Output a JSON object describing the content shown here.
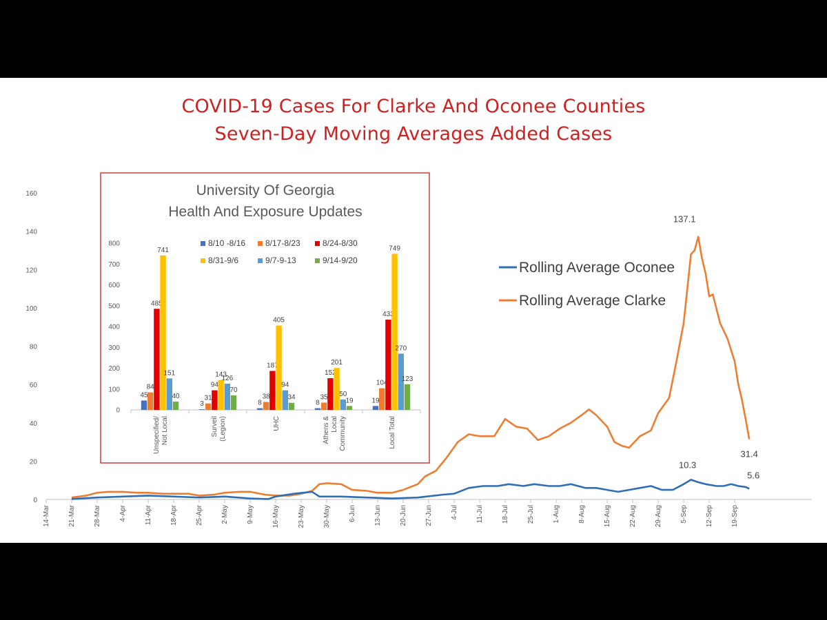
{
  "slide": {
    "title_line1": "COVID-19 Cases For Clarke And Oconee Counties",
    "title_line2": "Seven-Day Moving Averages Added Cases"
  },
  "chart_data": [
    {
      "type": "line",
      "title": "",
      "xlabel": "",
      "ylabel": "",
      "ylim": [
        0,
        160
      ],
      "yticks": [
        0,
        20,
        40,
        60,
        80,
        100,
        120,
        140,
        160
      ],
      "xtick_labels": [
        "14-Mar",
        "21-Mar",
        "28-Mar",
        "4-Apr",
        "11-Apr",
        "18-Apr",
        "25-Apr",
        "2-May",
        "9-May",
        "16-May",
        "23-May",
        "30-May",
        "6-Jun",
        "13-Jun",
        "20-Jun",
        "27-Jun",
        "4-Jul",
        "11-Jul",
        "18-Jul",
        "25-Jul",
        "1-Aug",
        "8-Aug",
        "15-Aug",
        "22-Aug",
        "29-Aug",
        "5-Sep",
        "12-Sep",
        "19-Sep"
      ],
      "x_start": "14-Mar",
      "legend": {
        "position": "right"
      },
      "grid": false,
      "annotations": [
        {
          "series": "Rolling Average Clarke",
          "day": "9-Sep",
          "label": "137.1"
        },
        {
          "series": "Rolling Average Clarke",
          "day": "23-Sep",
          "label": "31.4"
        },
        {
          "series": "Rolling Average Oconee",
          "day": "7-Sep",
          "label": "10.3"
        },
        {
          "series": "Rolling Average Oconee",
          "day": "23-Sep",
          "label": "5.6"
        }
      ],
      "series": [
        {
          "name": "Rolling Average Oconee",
          "color": "#2e6eb5",
          "points": [
            [
              "21-Mar",
              0.2
            ],
            [
              "28-Mar",
              1
            ],
            [
              "4-Apr",
              1.5
            ],
            [
              "11-Apr",
              2
            ],
            [
              "18-Apr",
              1.5
            ],
            [
              "25-Apr",
              1
            ],
            [
              "2-May",
              1.5
            ],
            [
              "9-May",
              0.5
            ],
            [
              "14-May",
              0.2
            ],
            [
              "16-May",
              1.5
            ],
            [
              "21-May",
              3
            ],
            [
              "26-May",
              4
            ],
            [
              "28-May",
              1.5
            ],
            [
              "3-Jun",
              1.5
            ],
            [
              "10-Jun",
              1
            ],
            [
              "17-Jun",
              0.5
            ],
            [
              "24-Jun",
              1
            ],
            [
              "1-Jul",
              2.5
            ],
            [
              "4-Jul",
              3
            ],
            [
              "8-Jul",
              6
            ],
            [
              "12-Jul",
              7
            ],
            [
              "16-Jul",
              7
            ],
            [
              "19-Jul",
              8
            ],
            [
              "23-Jul",
              7
            ],
            [
              "26-Jul",
              8
            ],
            [
              "30-Jul",
              7
            ],
            [
              "2-Aug",
              7
            ],
            [
              "5-Aug",
              8
            ],
            [
              "9-Aug",
              6
            ],
            [
              "12-Aug",
              6
            ],
            [
              "15-Aug",
              5
            ],
            [
              "18-Aug",
              4
            ],
            [
              "21-Aug",
              5
            ],
            [
              "24-Aug",
              6
            ],
            [
              "27-Aug",
              7
            ],
            [
              "30-Aug",
              5
            ],
            [
              "2-Sep",
              5
            ],
            [
              "5-Sep",
              8
            ],
            [
              "7-Sep",
              10.3
            ],
            [
              "9-Sep",
              9
            ],
            [
              "11-Sep",
              8
            ],
            [
              "14-Sep",
              7
            ],
            [
              "16-Sep",
              7
            ],
            [
              "18-Sep",
              8
            ],
            [
              "20-Sep",
              7
            ],
            [
              "22-Sep",
              6.5
            ],
            [
              "23-Sep",
              5.6
            ]
          ]
        },
        {
          "name": "Rolling Average Clarke",
          "color": "#ee7d31",
          "points": [
            [
              "21-Mar",
              1
            ],
            [
              "25-Mar",
              2
            ],
            [
              "28-Mar",
              3.5
            ],
            [
              "31-Mar",
              4
            ],
            [
              "4-Apr",
              4
            ],
            [
              "8-Apr",
              3.5
            ],
            [
              "11-Apr",
              3.5
            ],
            [
              "15-Apr",
              3
            ],
            [
              "18-Apr",
              3
            ],
            [
              "22-Apr",
              3
            ],
            [
              "25-Apr",
              2
            ],
            [
              "29-Apr",
              2.5
            ],
            [
              "2-May",
              3.5
            ],
            [
              "6-May",
              4
            ],
            [
              "9-May",
              4
            ],
            [
              "13-May",
              2.5
            ],
            [
              "16-May",
              2
            ],
            [
              "20-May",
              2
            ],
            [
              "23-May",
              3
            ],
            [
              "26-May",
              4.5
            ],
            [
              "28-May",
              8
            ],
            [
              "30-May",
              8.5
            ],
            [
              "3-Jun",
              8
            ],
            [
              "6-Jun",
              5
            ],
            [
              "10-Jun",
              4.5
            ],
            [
              "13-Jun",
              3.5
            ],
            [
              "17-Jun",
              3.5
            ],
            [
              "20-Jun",
              5
            ],
            [
              "24-Jun",
              8
            ],
            [
              "26-Jun",
              12
            ],
            [
              "29-Jun",
              15
            ],
            [
              "2-Jul",
              22
            ],
            [
              "5-Jul",
              30
            ],
            [
              "8-Jul",
              34
            ],
            [
              "11-Jul",
              33
            ],
            [
              "15-Jul",
              33
            ],
            [
              "18-Jul",
              42
            ],
            [
              "21-Jul",
              38
            ],
            [
              "24-Jul",
              37
            ],
            [
              "27-Jul",
              31
            ],
            [
              "30-Jul",
              33
            ],
            [
              "2-Aug",
              37
            ],
            [
              "5-Aug",
              40
            ],
            [
              "8-Aug",
              44
            ],
            [
              "10-Aug",
              47
            ],
            [
              "12-Aug",
              44
            ],
            [
              "15-Aug",
              38
            ],
            [
              "17-Aug",
              30
            ],
            [
              "19-Aug",
              28
            ],
            [
              "21-Aug",
              27
            ],
            [
              "24-Aug",
              33
            ],
            [
              "27-Aug",
              36
            ],
            [
              "29-Aug",
              45
            ],
            [
              "1-Sep",
              53
            ],
            [
              "3-Sep",
              72
            ],
            [
              "5-Sep",
              92
            ],
            [
              "7-Sep",
              128
            ],
            [
              "8-Sep",
              130
            ],
            [
              "9-Sep",
              137.1
            ],
            [
              "10-Sep",
              126
            ],
            [
              "11-Sep",
              118
            ],
            [
              "12-Sep",
              106
            ],
            [
              "13-Sep",
              107
            ],
            [
              "15-Sep",
              92
            ],
            [
              "17-Sep",
              84
            ],
            [
              "19-Sep",
              72
            ],
            [
              "20-Sep",
              60
            ],
            [
              "21-Sep",
              52
            ],
            [
              "22-Sep",
              42
            ],
            [
              "23-Sep",
              31.4
            ]
          ]
        }
      ]
    },
    {
      "type": "bar",
      "title": "University Of Georgia\nHealth And Exposure Updates",
      "title_lines": [
        "University Of Georgia",
        "Health And Exposure Updates"
      ],
      "xlabel": "",
      "ylabel": "",
      "ylim": [
        0,
        800
      ],
      "yticks": [
        0,
        100,
        200,
        300,
        400,
        500,
        600,
        700,
        800
      ],
      "grid": false,
      "legend": {
        "position": "top"
      },
      "categories": [
        [
          "Unspecified/",
          "Not Local"
        ],
        [
          "Surveil",
          "(Legion)"
        ],
        [
          "UHC"
        ],
        [
          "Athens &",
          "Local",
          "Community"
        ],
        [
          "Local Total"
        ]
      ],
      "series": [
        {
          "name": "8/10 -8/16",
          "color": "#4472c4",
          "values": [
            45,
            3,
            8,
            8,
            19
          ]
        },
        {
          "name": "8/17-8/23",
          "color": "#ed7d31",
          "values": [
            84,
            31,
            38,
            35,
            104
          ]
        },
        {
          "name": "8/24-8/30",
          "color": "#e00000",
          "values": [
            485,
            94,
            187,
            152,
            433
          ]
        },
        {
          "name": "8/31-9/6",
          "color": "#ffc000",
          "values": [
            741,
            143,
            405,
            201,
            749
          ]
        },
        {
          "name": "9/7-9-13",
          "color": "#5b9bd5",
          "values": [
            151,
            126,
            94,
            50,
            270
          ]
        },
        {
          "name": "9/14-9/20",
          "color": "#70ad47",
          "values": [
            40,
            70,
            34,
            19,
            123
          ]
        }
      ]
    }
  ]
}
